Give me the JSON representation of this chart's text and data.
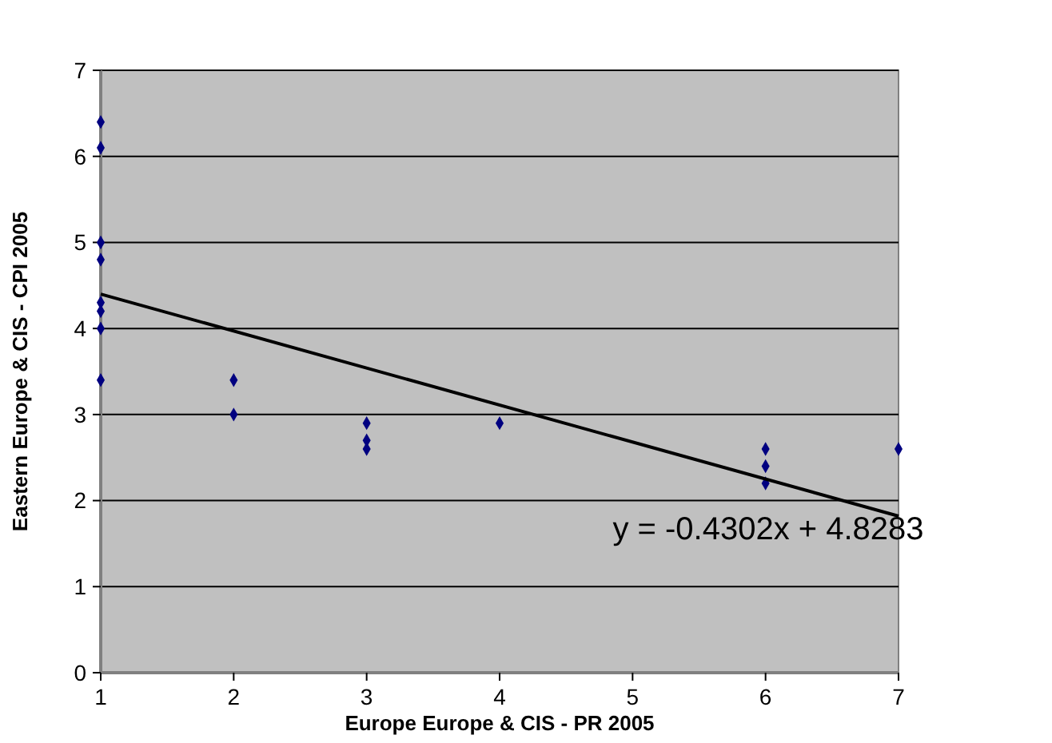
{
  "chart_data": {
    "type": "scatter",
    "xlabel": "Europe Europe & CIS - PR 2005",
    "ylabel": "Eastern Europe & CIS  - CPI 2005",
    "xlim": [
      1,
      7
    ],
    "ylim": [
      0,
      7
    ],
    "xticks": [
      1,
      2,
      3,
      4,
      5,
      6,
      7
    ],
    "yticks": [
      0,
      1,
      2,
      3,
      4,
      5,
      6,
      7
    ],
    "grid": "y",
    "marker": "diamond",
    "annotations": [
      "y = -0.4302x + 4.8283"
    ],
    "series": [
      {
        "color": "#000080",
        "x": [
          1,
          1,
          1,
          1,
          1,
          1,
          1,
          1,
          2,
          2,
          3,
          3,
          3,
          4,
          6,
          6,
          6,
          7
        ],
        "values": [
          6.4,
          6.1,
          5.0,
          4.8,
          4.3,
          4.2,
          4.0,
          3.4,
          3.4,
          3.0,
          2.9,
          2.7,
          2.6,
          2.9,
          2.6,
          2.4,
          2.2,
          2.6
        ]
      },
      {
        "type": "line",
        "color": "#000000",
        "line_style": "solid",
        "marker": "none",
        "x": [
          1,
          7
        ],
        "values": [
          4.4,
          1.82
        ]
      }
    ]
  }
}
